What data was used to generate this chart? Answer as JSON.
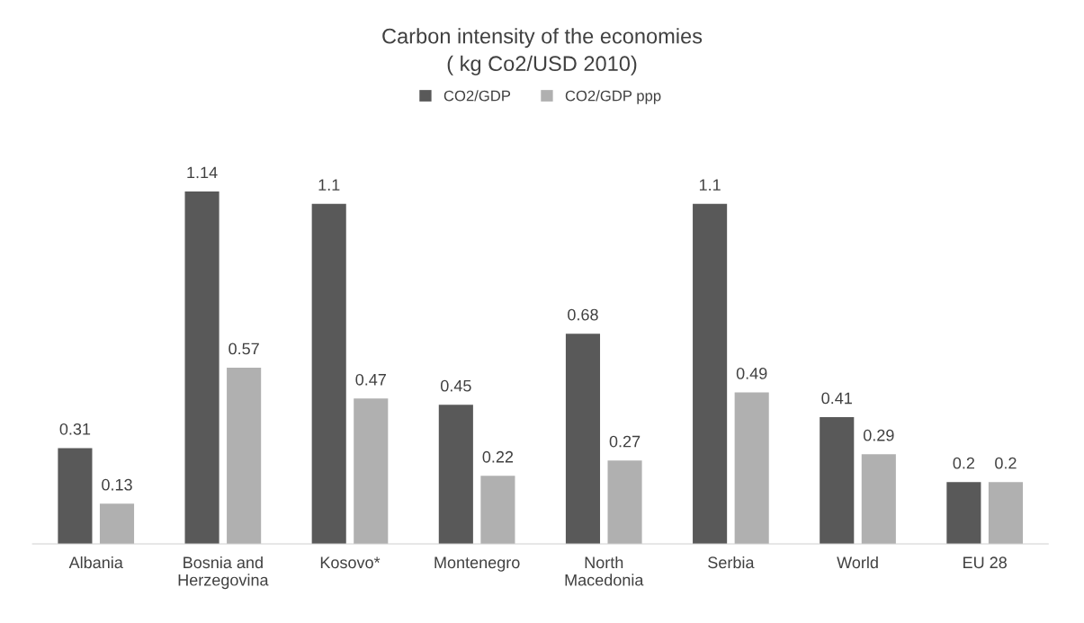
{
  "chart_data": {
    "type": "bar",
    "title": "Carbon intensity of the economies\n( kg Co2/USD 2010)",
    "categories": [
      "Albania",
      "Bosnia and\nHerzegovina",
      "Kosovo*",
      "Montenegro",
      "North\nMacedonia",
      "Serbia",
      "World",
      "EU 28"
    ],
    "series": [
      {
        "name": "CO2/GDP",
        "color": "#595959",
        "values": [
          0.31,
          1.14,
          1.1,
          0.45,
          0.68,
          1.1,
          0.41,
          0.2
        ]
      },
      {
        "name": "CO2/GDP ppp",
        "color": "#b0b0b0",
        "values": [
          0.13,
          0.57,
          0.47,
          0.22,
          0.27,
          0.49,
          0.29,
          0.2
        ]
      }
    ],
    "data_labels": true,
    "legend": "top",
    "grid": false
  }
}
